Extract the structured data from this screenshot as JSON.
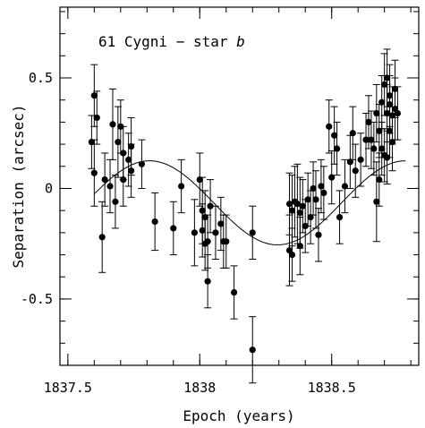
{
  "chart_data": {
    "type": "scatter",
    "title": "",
    "annotation": "61 Cygni − star ",
    "annotation_italic": "b",
    "xlabel": "Epoch (years)",
    "ylabel": "Separation (arcsec)",
    "xlim": [
      1837.47,
      1838.83
    ],
    "ylim": [
      -0.8,
      0.82
    ],
    "x_ticks": [
      {
        "value": 1837.5,
        "label": "1837.5"
      },
      {
        "value": 1838.0,
        "label": "1838"
      },
      {
        "value": 1838.5,
        "label": "1838.5"
      }
    ],
    "y_ticks": [
      {
        "value": 0.5,
        "label": "0.5"
      },
      {
        "value": 0.0,
        "label": "0"
      },
      {
        "value": -0.5,
        "label": "-0.5"
      }
    ],
    "x_minor_step": 0.1,
    "y_minor_step": 0.1,
    "grid": false,
    "fit_curve": {
      "form": "sinusoid",
      "offset": -0.065,
      "amplitude": 0.19,
      "period": 0.97,
      "peak_epoch": 1837.81
    },
    "points": [
      {
        "x": 1837.59,
        "y": 0.21,
        "err": 0.12
      },
      {
        "x": 1837.6,
        "y": 0.42,
        "err": 0.14
      },
      {
        "x": 1837.6,
        "y": 0.07,
        "err": 0.15
      },
      {
        "x": 1837.61,
        "y": 0.32,
        "err": 0.12
      },
      {
        "x": 1837.63,
        "y": -0.22,
        "err": 0.16
      },
      {
        "x": 1837.64,
        "y": 0.04,
        "err": 0.12
      },
      {
        "x": 1837.66,
        "y": 0.01,
        "err": 0.12
      },
      {
        "x": 1837.67,
        "y": 0.29,
        "err": 0.16
      },
      {
        "x": 1837.68,
        "y": -0.06,
        "err": 0.12
      },
      {
        "x": 1837.69,
        "y": 0.21,
        "err": 0.16
      },
      {
        "x": 1837.7,
        "y": 0.28,
        "err": 0.12
      },
      {
        "x": 1837.71,
        "y": 0.04,
        "err": 0.12
      },
      {
        "x": 1837.71,
        "y": 0.16,
        "err": 0.12
      },
      {
        "x": 1837.73,
        "y": 0.13,
        "err": 0.12
      },
      {
        "x": 1837.74,
        "y": 0.19,
        "err": 0.13
      },
      {
        "x": 1837.74,
        "y": 0.08,
        "err": 0.12
      },
      {
        "x": 1837.78,
        "y": 0.11,
        "err": 0.11
      },
      {
        "x": 1837.83,
        "y": -0.15,
        "err": 0.13
      },
      {
        "x": 1837.9,
        "y": -0.18,
        "err": 0.12
      },
      {
        "x": 1837.93,
        "y": 0.01,
        "err": 0.12
      },
      {
        "x": 1837.98,
        "y": -0.2,
        "err": 0.15
      },
      {
        "x": 1838.0,
        "y": 0.04,
        "err": 0.12
      },
      {
        "x": 1838.01,
        "y": -0.19,
        "err": 0.12
      },
      {
        "x": 1838.01,
        "y": -0.1,
        "err": 0.15
      },
      {
        "x": 1838.02,
        "y": -0.25,
        "err": 0.12
      },
      {
        "x": 1838.02,
        "y": -0.13,
        "err": 0.12
      },
      {
        "x": 1838.03,
        "y": -0.24,
        "err": 0.12
      },
      {
        "x": 1838.03,
        "y": -0.42,
        "err": 0.12
      },
      {
        "x": 1838.04,
        "y": -0.08,
        "err": 0.12
      },
      {
        "x": 1838.06,
        "y": -0.2,
        "err": 0.12
      },
      {
        "x": 1838.08,
        "y": -0.16,
        "err": 0.12
      },
      {
        "x": 1838.09,
        "y": -0.24,
        "err": 0.12
      },
      {
        "x": 1838.1,
        "y": -0.24,
        "err": 0.12
      },
      {
        "x": 1838.13,
        "y": -0.47,
        "err": 0.12
      },
      {
        "x": 1838.2,
        "y": -0.2,
        "err": 0.12
      },
      {
        "x": 1838.2,
        "y": -0.73,
        "err": 0.15
      },
      {
        "x": 1838.34,
        "y": -0.28,
        "err": 0.16
      },
      {
        "x": 1838.34,
        "y": -0.07,
        "err": 0.14
      },
      {
        "x": 1838.35,
        "y": -0.1,
        "err": 0.16
      },
      {
        "x": 1838.35,
        "y": -0.3,
        "err": 0.12
      },
      {
        "x": 1838.36,
        "y": -0.06,
        "err": 0.16
      },
      {
        "x": 1838.37,
        "y": -0.07,
        "err": 0.18
      },
      {
        "x": 1838.38,
        "y": -0.11,
        "err": 0.16
      },
      {
        "x": 1838.38,
        "y": -0.26,
        "err": 0.13
      },
      {
        "x": 1838.39,
        "y": -0.08,
        "err": 0.12
      },
      {
        "x": 1838.4,
        "y": -0.17,
        "err": 0.12
      },
      {
        "x": 1838.41,
        "y": -0.05,
        "err": 0.12
      },
      {
        "x": 1838.42,
        "y": -0.13,
        "err": 0.12
      },
      {
        "x": 1838.43,
        "y": 0.0,
        "err": 0.12
      },
      {
        "x": 1838.44,
        "y": -0.05,
        "err": 0.13
      },
      {
        "x": 1838.45,
        "y": -0.21,
        "err": 0.12
      },
      {
        "x": 1838.46,
        "y": 0.01,
        "err": 0.12
      },
      {
        "x": 1838.47,
        "y": -0.02,
        "err": 0.12
      },
      {
        "x": 1838.49,
        "y": 0.28,
        "err": 0.12
      },
      {
        "x": 1838.5,
        "y": 0.05,
        "err": 0.12
      },
      {
        "x": 1838.51,
        "y": 0.24,
        "err": 0.13
      },
      {
        "x": 1838.52,
        "y": 0.18,
        "err": 0.12
      },
      {
        "x": 1838.53,
        "y": -0.13,
        "err": 0.12
      },
      {
        "x": 1838.55,
        "y": 0.01,
        "err": 0.12
      },
      {
        "x": 1838.57,
        "y": 0.12,
        "err": 0.12
      },
      {
        "x": 1838.58,
        "y": 0.25,
        "err": 0.12
      },
      {
        "x": 1838.59,
        "y": 0.08,
        "err": 0.12
      },
      {
        "x": 1838.61,
        "y": 0.13,
        "err": 0.12
      },
      {
        "x": 1838.63,
        "y": 0.22,
        "err": 0.12
      },
      {
        "x": 1838.64,
        "y": 0.3,
        "err": 0.12
      },
      {
        "x": 1838.65,
        "y": 0.22,
        "err": 0.13
      },
      {
        "x": 1838.66,
        "y": 0.18,
        "err": 0.12
      },
      {
        "x": 1838.67,
        "y": -0.06,
        "err": 0.18
      },
      {
        "x": 1838.67,
        "y": 0.34,
        "err": 0.13
      },
      {
        "x": 1838.68,
        "y": 0.04,
        "err": 0.12
      },
      {
        "x": 1838.68,
        "y": 0.26,
        "err": 0.12
      },
      {
        "x": 1838.69,
        "y": 0.18,
        "err": 0.12
      },
      {
        "x": 1838.69,
        "y": 0.39,
        "err": 0.12
      },
      {
        "x": 1838.7,
        "y": 0.15,
        "err": 0.12
      },
      {
        "x": 1838.7,
        "y": 0.47,
        "err": 0.14
      },
      {
        "x": 1838.71,
        "y": 0.14,
        "err": 0.12
      },
      {
        "x": 1838.71,
        "y": 0.34,
        "err": 0.13
      },
      {
        "x": 1838.71,
        "y": 0.5,
        "err": 0.13
      },
      {
        "x": 1838.72,
        "y": 0.26,
        "err": 0.12
      },
      {
        "x": 1838.72,
        "y": 0.42,
        "err": 0.14
      },
      {
        "x": 1838.72,
        "y": 0.38,
        "err": 0.13
      },
      {
        "x": 1838.73,
        "y": 0.33,
        "err": 0.13
      },
      {
        "x": 1838.73,
        "y": 0.21,
        "err": 0.13
      },
      {
        "x": 1838.74,
        "y": 0.36,
        "err": 0.14
      },
      {
        "x": 1838.74,
        "y": 0.45,
        "err": 0.13
      },
      {
        "x": 1838.75,
        "y": 0.34,
        "err": 0.12
      }
    ]
  }
}
